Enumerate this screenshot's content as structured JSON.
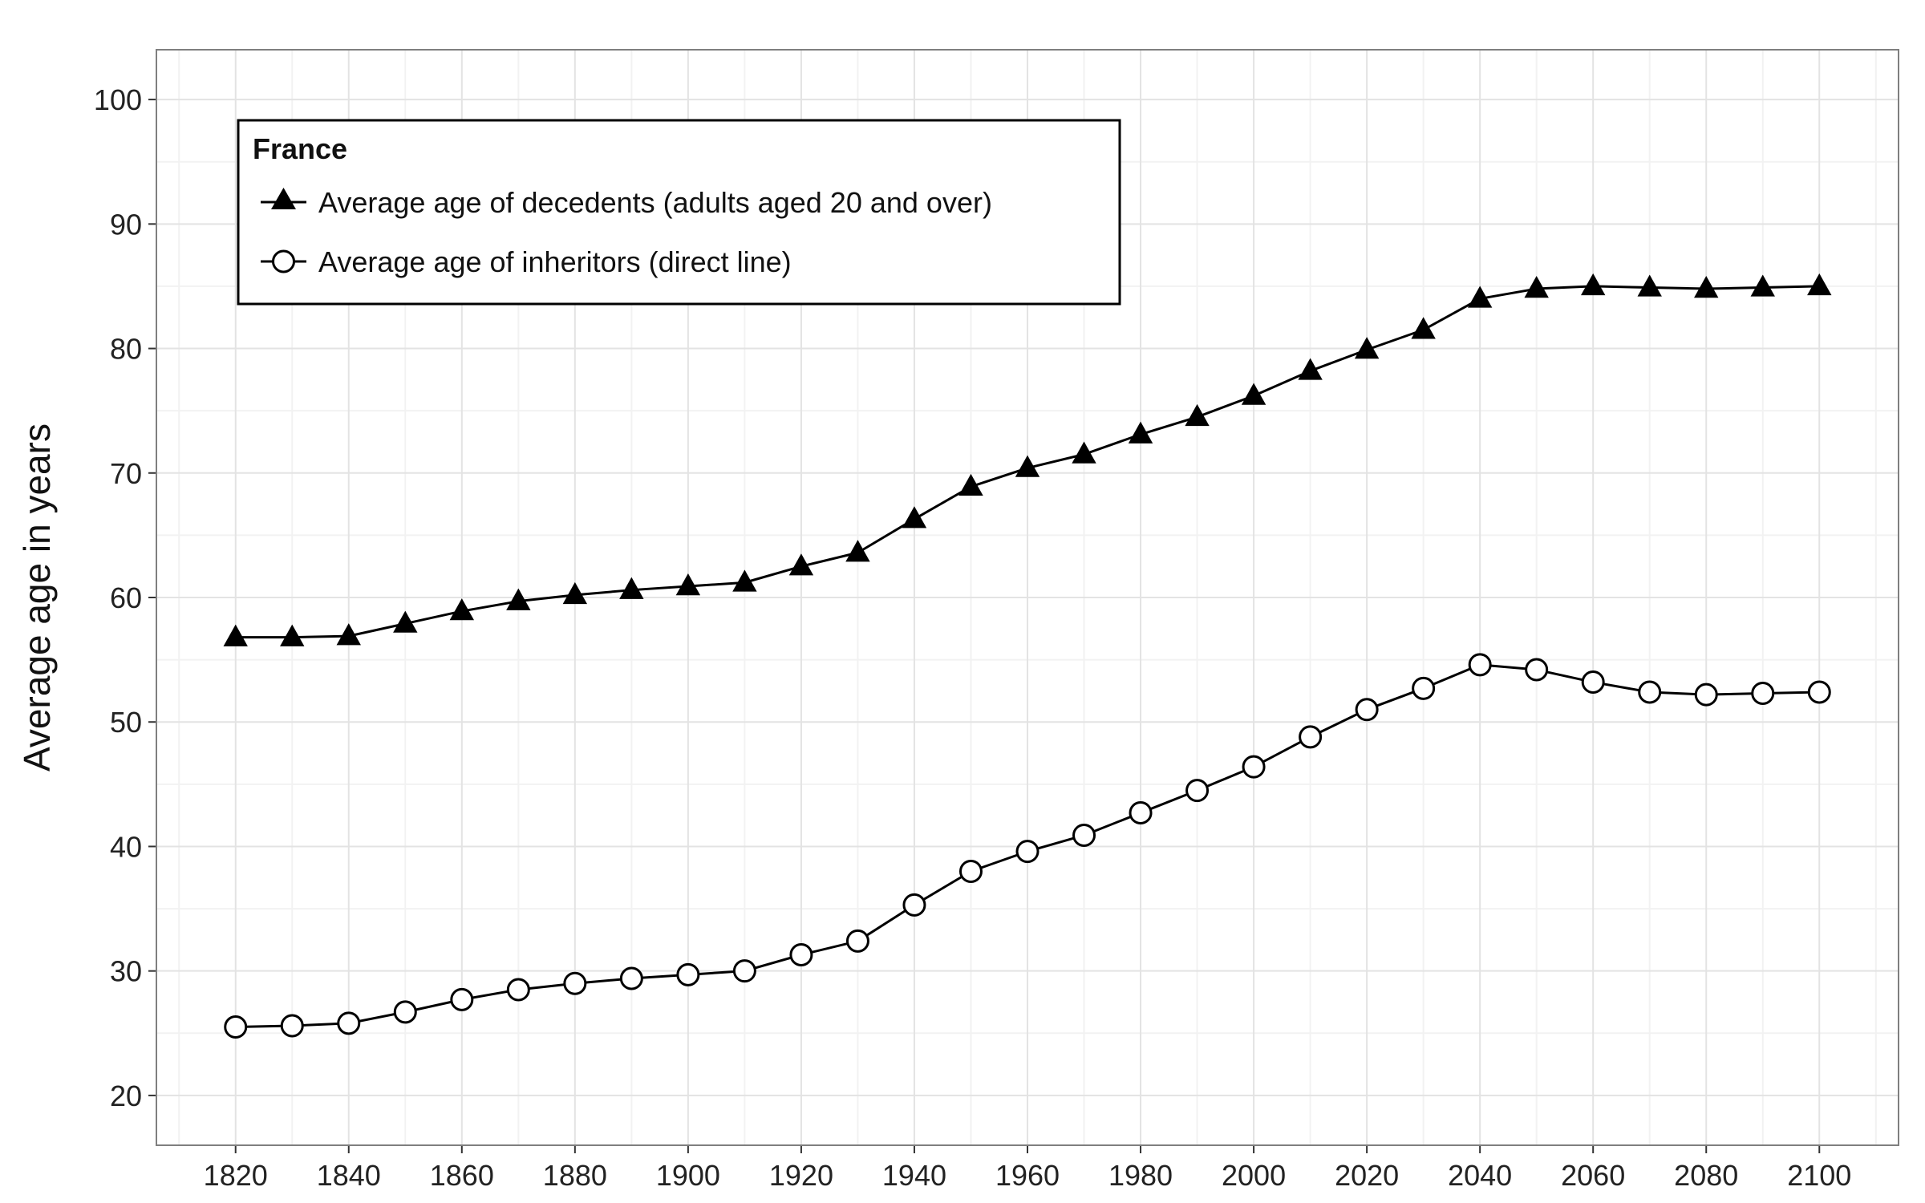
{
  "chart_data": {
    "type": "line",
    "title": "",
    "xlabel": "",
    "ylabel": "Average age in years",
    "xlim": [
      1806,
      2114
    ],
    "ylim": [
      16,
      104
    ],
    "x_ticks": [
      1820,
      1840,
      1860,
      1880,
      1900,
      1920,
      1940,
      1960,
      1980,
      2000,
      2020,
      2040,
      2060,
      2080,
      2100
    ],
    "y_ticks": [
      20,
      30,
      40,
      50,
      60,
      70,
      80,
      90,
      100
    ],
    "grid": true,
    "legend": {
      "title": "France",
      "position": "top-left"
    },
    "x": [
      1820,
      1830,
      1840,
      1850,
      1860,
      1870,
      1880,
      1890,
      1900,
      1910,
      1920,
      1930,
      1940,
      1950,
      1960,
      1970,
      1980,
      1990,
      2000,
      2010,
      2020,
      2030,
      2040,
      2050,
      2060,
      2070,
      2080,
      2090,
      2100
    ],
    "series": [
      {
        "name": "Average age of decedents (adults aged 20 and over)",
        "marker": "filled-triangle",
        "color": "#000000",
        "values": [
          56.8,
          56.8,
          56.9,
          57.9,
          58.9,
          59.7,
          60.2,
          60.6,
          60.9,
          61.2,
          62.5,
          63.6,
          66.3,
          68.9,
          70.4,
          71.5,
          73.1,
          74.5,
          76.2,
          78.2,
          79.9,
          81.5,
          84.0,
          84.8,
          85.0,
          84.9,
          84.8,
          84.9,
          85.0
        ]
      },
      {
        "name": "Average age of inheritors (direct line)",
        "marker": "open-circle",
        "color": "#000000",
        "values": [
          25.5,
          25.6,
          25.8,
          26.7,
          27.7,
          28.5,
          29.0,
          29.4,
          29.7,
          30.0,
          31.3,
          32.4,
          35.3,
          38.0,
          39.6,
          40.9,
          42.7,
          44.5,
          46.4,
          48.8,
          51.0,
          52.7,
          54.6,
          54.2,
          53.2,
          52.4,
          52.2,
          52.3,
          52.4
        ]
      }
    ]
  }
}
